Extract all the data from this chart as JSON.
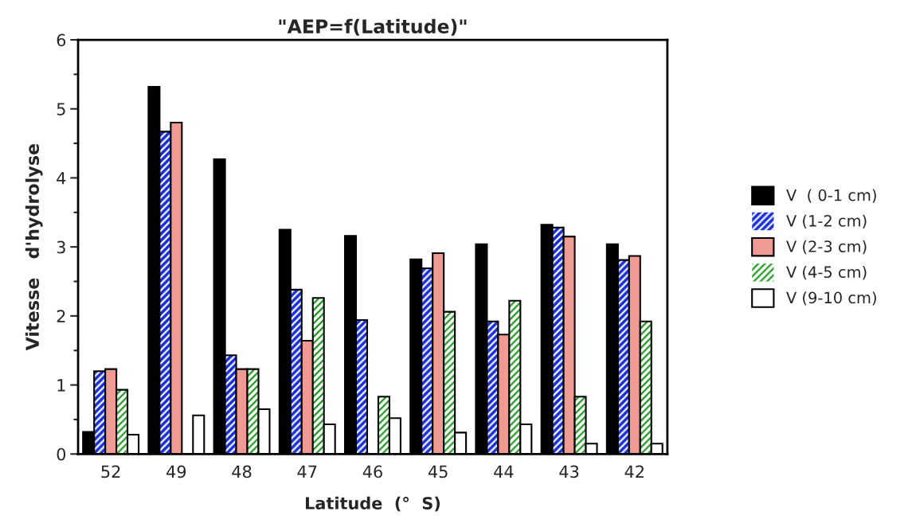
{
  "chart_data": {
    "type": "bar",
    "title": "\"AEP=f(Latitude)\"",
    "xlabel": "Latitude  (°  S)",
    "ylabel": "Vitesse   d'hydrolyse",
    "categories": [
      "52",
      "49",
      "48",
      "47",
      "46",
      "45",
      "44",
      "43",
      "42"
    ],
    "series": [
      {
        "name": "V  ( 0-1 cm)",
        "color": "#000000",
        "values": [
          0.32,
          5.32,
          4.27,
          3.25,
          3.16,
          2.82,
          3.04,
          3.32,
          3.04
        ]
      },
      {
        "name": "V (1-2 cm)",
        "color": "#1a2fd6",
        "values": [
          1.2,
          4.67,
          1.43,
          2.38,
          1.94,
          2.69,
          1.92,
          3.28,
          2.81
        ]
      },
      {
        "name": "V (2-3 cm)",
        "color": "#f09a94",
        "values": [
          1.23,
          4.8,
          1.23,
          1.64,
          null,
          2.91,
          1.73,
          3.15,
          2.87
        ]
      },
      {
        "name": "V (4-5 cm)",
        "color": "#1a961a",
        "values": [
          0.93,
          null,
          1.23,
          2.26,
          0.83,
          2.06,
          2.22,
          0.83,
          1.92
        ]
      },
      {
        "name": "V (9-10 cm)",
        "color": "#ffffff",
        "values": [
          0.28,
          0.56,
          0.65,
          0.43,
          0.52,
          0.31,
          0.43,
          0.15,
          0.15
        ]
      }
    ],
    "ylim": [
      0,
      6
    ],
    "yticks": [
      0,
      {
        "value": 0.5,
        "label": null
      },
      1,
      {
        "value": 1.5,
        "label": null
      },
      2,
      {
        "value": 2.5,
        "label": null
      },
      3,
      {
        "value": 3.5,
        "label": null
      },
      4,
      {
        "value": 4.5,
        "label": null
      },
      5,
      {
        "value": 5.5,
        "label": null
      },
      6
    ],
    "grid": false,
    "legend": "right"
  }
}
